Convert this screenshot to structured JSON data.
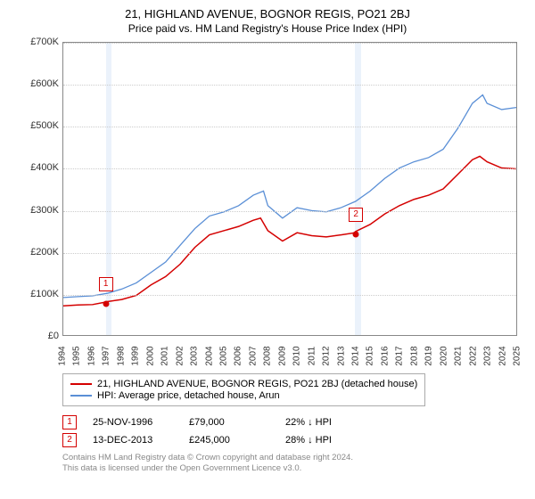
{
  "title": "21, HIGHLAND AVENUE, BOGNOR REGIS, PO21 2BJ",
  "subtitle": "Price paid vs. HM Land Registry's House Price Index (HPI)",
  "chart": {
    "type": "line",
    "xlim": [
      1994,
      2025
    ],
    "ylim": [
      0,
      700000
    ],
    "ytick_step": 100000,
    "yticks": [
      "£0",
      "£100K",
      "£200K",
      "£300K",
      "£400K",
      "£500K",
      "£600K",
      "£700K"
    ],
    "xticks": [
      1994,
      1995,
      1996,
      1997,
      1998,
      1999,
      2000,
      2001,
      2002,
      2003,
      2004,
      2005,
      2006,
      2007,
      2008,
      2009,
      2010,
      2011,
      2012,
      2013,
      2014,
      2015,
      2016,
      2017,
      2018,
      2019,
      2020,
      2021,
      2022,
      2023,
      2024,
      2025
    ],
    "background_color": "#ffffff",
    "grid_color": "#cccccc",
    "axis_color": "#888888",
    "shade_color": "rgba(120,170,230,0.15)",
    "shade_ranges": [
      [
        1996.9,
        1997.3
      ],
      [
        2013.9,
        2014.3
      ]
    ],
    "series": [
      {
        "name": "price_paid",
        "label": "21, HIGHLAND AVENUE, BOGNOR REGIS, PO21 2BJ (detached house)",
        "color": "#d40000",
        "line_width": 1.5,
        "data": [
          [
            1994,
            70000
          ],
          [
            1995,
            72000
          ],
          [
            1996,
            73000
          ],
          [
            1996.9,
            79000
          ],
          [
            1997,
            80000
          ],
          [
            1998,
            85000
          ],
          [
            1999,
            95000
          ],
          [
            2000,
            120000
          ],
          [
            2001,
            140000
          ],
          [
            2002,
            170000
          ],
          [
            2003,
            210000
          ],
          [
            2004,
            240000
          ],
          [
            2005,
            250000
          ],
          [
            2006,
            260000
          ],
          [
            2007,
            275000
          ],
          [
            2007.5,
            280000
          ],
          [
            2008,
            250000
          ],
          [
            2009,
            225000
          ],
          [
            2010,
            245000
          ],
          [
            2011,
            238000
          ],
          [
            2012,
            235000
          ],
          [
            2013,
            240000
          ],
          [
            2013.95,
            245000
          ],
          [
            2014,
            248000
          ],
          [
            2015,
            265000
          ],
          [
            2016,
            290000
          ],
          [
            2017,
            310000
          ],
          [
            2018,
            325000
          ],
          [
            2019,
            335000
          ],
          [
            2020,
            350000
          ],
          [
            2021,
            385000
          ],
          [
            2022,
            420000
          ],
          [
            2022.5,
            428000
          ],
          [
            2023,
            415000
          ],
          [
            2024,
            400000
          ],
          [
            2025,
            398000
          ]
        ]
      },
      {
        "name": "hpi",
        "label": "HPI: Average price, detached house, Arun",
        "color": "#5a8fd6",
        "line_width": 1.3,
        "data": [
          [
            1994,
            90000
          ],
          [
            1995,
            92000
          ],
          [
            1996,
            94000
          ],
          [
            1997,
            100000
          ],
          [
            1998,
            110000
          ],
          [
            1999,
            125000
          ],
          [
            2000,
            150000
          ],
          [
            2001,
            175000
          ],
          [
            2002,
            215000
          ],
          [
            2003,
            255000
          ],
          [
            2004,
            285000
          ],
          [
            2005,
            295000
          ],
          [
            2006,
            310000
          ],
          [
            2007,
            335000
          ],
          [
            2007.7,
            345000
          ],
          [
            2008,
            310000
          ],
          [
            2009,
            280000
          ],
          [
            2010,
            305000
          ],
          [
            2011,
            298000
          ],
          [
            2012,
            295000
          ],
          [
            2013,
            305000
          ],
          [
            2014,
            320000
          ],
          [
            2015,
            345000
          ],
          [
            2016,
            375000
          ],
          [
            2017,
            400000
          ],
          [
            2018,
            415000
          ],
          [
            2019,
            425000
          ],
          [
            2020,
            445000
          ],
          [
            2021,
            495000
          ],
          [
            2022,
            555000
          ],
          [
            2022.7,
            575000
          ],
          [
            2023,
            555000
          ],
          [
            2024,
            540000
          ],
          [
            2025,
            545000
          ]
        ]
      }
    ],
    "markers": [
      {
        "id": "1",
        "x": 1996.9,
        "y": 79000,
        "box_offset_y": -30
      },
      {
        "id": "2",
        "x": 2013.95,
        "y": 245000,
        "box_offset_y": -30
      }
    ]
  },
  "legend": {
    "items": [
      {
        "label_key": "chart.series.0.label",
        "color": "#d40000"
      },
      {
        "label_key": "chart.series.1.label",
        "color": "#5a8fd6"
      }
    ]
  },
  "sales": [
    {
      "id": "1",
      "date": "25-NOV-1996",
      "price": "£79,000",
      "delta": "22% ↓ HPI"
    },
    {
      "id": "2",
      "date": "13-DEC-2013",
      "price": "£245,000",
      "delta": "28% ↓ HPI"
    }
  ],
  "attribution": {
    "line1": "Contains HM Land Registry data © Crown copyright and database right 2024.",
    "line2": "This data is licensed under the Open Government Licence v3.0."
  }
}
